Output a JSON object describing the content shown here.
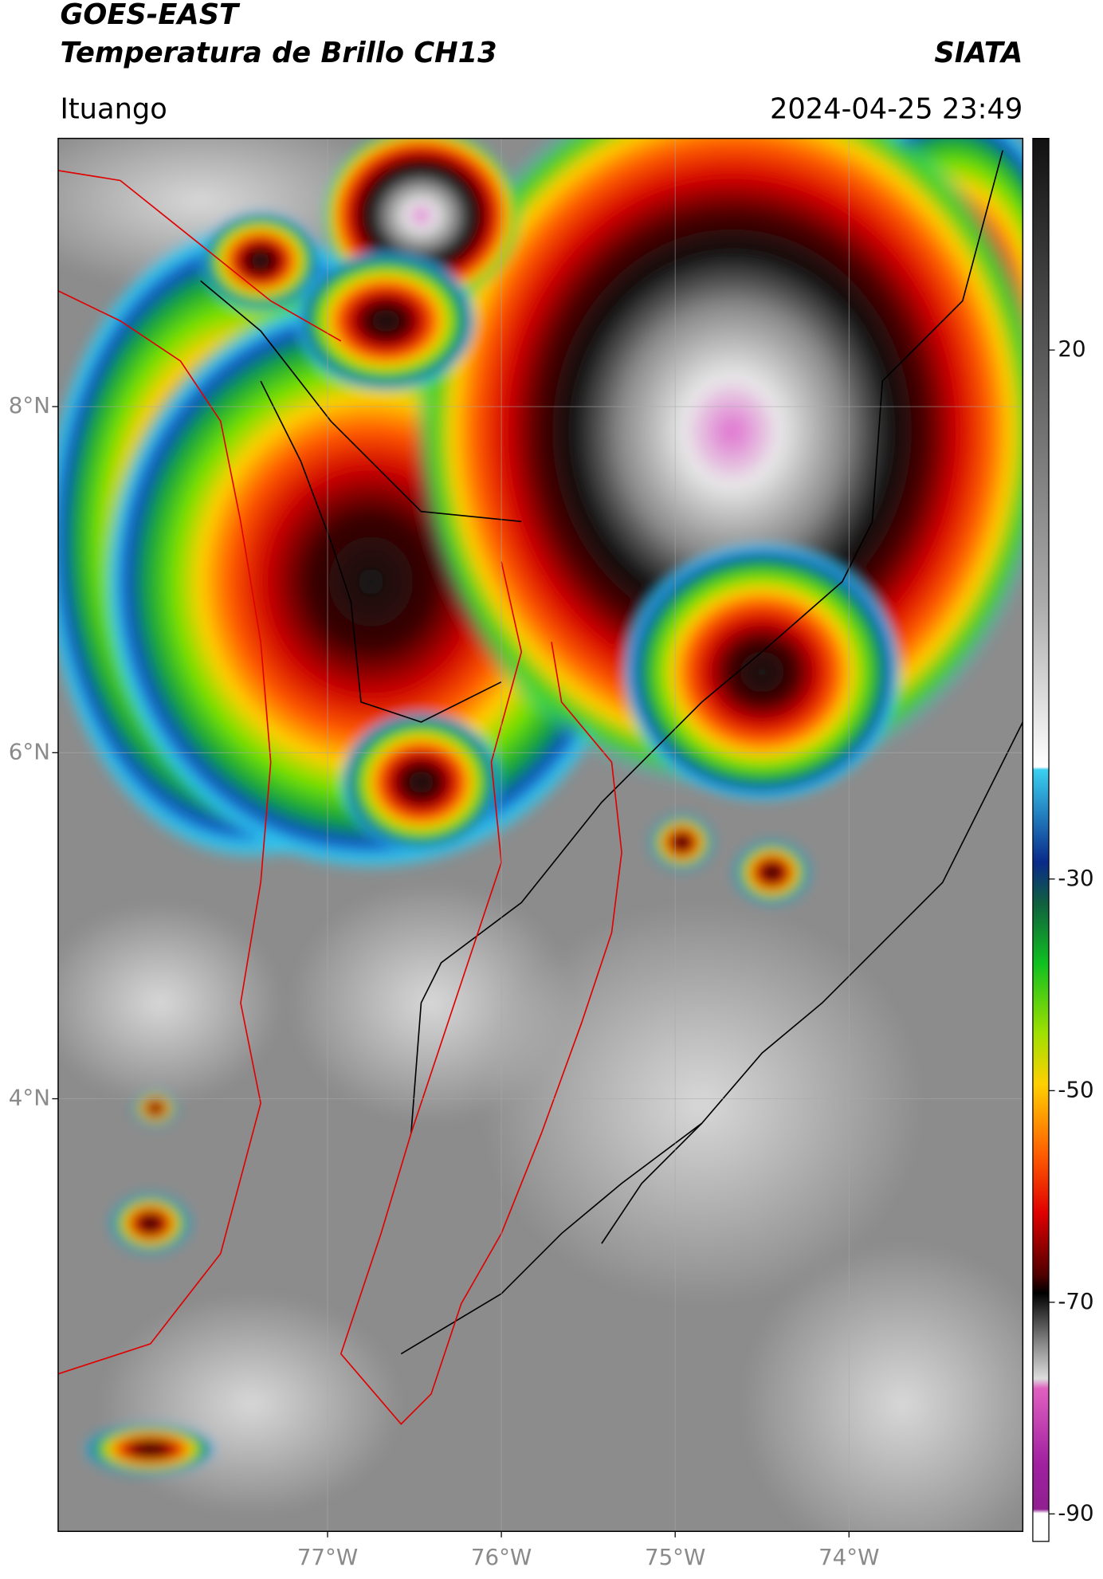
{
  "header": {
    "title": "GOES-EAST",
    "subtitle": "Temperatura de Brillo CH13",
    "brand": "SIATA",
    "location": "Ituango",
    "datetime": "2024-04-25 23:49"
  },
  "map": {
    "xlim": [
      -78.55,
      -73
    ],
    "ylim": [
      1.5,
      9.55
    ],
    "xticks": [
      {
        "value": -77,
        "label": "77°W"
      },
      {
        "value": -76,
        "label": "76°W"
      },
      {
        "value": -75,
        "label": "75°W"
      },
      {
        "value": -74,
        "label": "74°W"
      }
    ],
    "yticks": [
      {
        "value": 8,
        "label": "8°N"
      },
      {
        "value": 6,
        "label": "6°N"
      },
      {
        "value": 4,
        "label": "4°N"
      }
    ],
    "grid": true
  },
  "colorbar": {
    "lim": [
      -92.6,
      40
    ],
    "ticks": [
      20,
      -30,
      -50,
      -70,
      -90
    ]
  }
}
